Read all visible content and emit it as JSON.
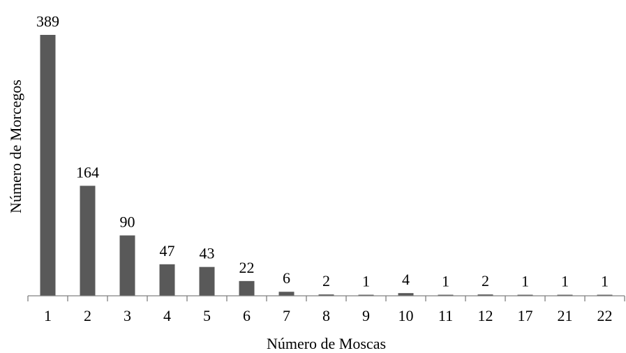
{
  "chart_data": {
    "type": "bar",
    "title": "",
    "xlabel": "Número de Moscas",
    "ylabel": "Número de Morcegos",
    "categories": [
      "1",
      "2",
      "3",
      "4",
      "5",
      "6",
      "7",
      "8",
      "9",
      "10",
      "11",
      "12",
      "17",
      "21",
      "22"
    ],
    "values": [
      389,
      164,
      90,
      47,
      43,
      22,
      6,
      2,
      1,
      4,
      1,
      2,
      1,
      1,
      1
    ],
    "ylim": [
      0,
      389
    ],
    "grid": false,
    "legend": "none",
    "colors": {
      "bar": "#595959",
      "axis": "#808080",
      "text": "#000000"
    }
  }
}
